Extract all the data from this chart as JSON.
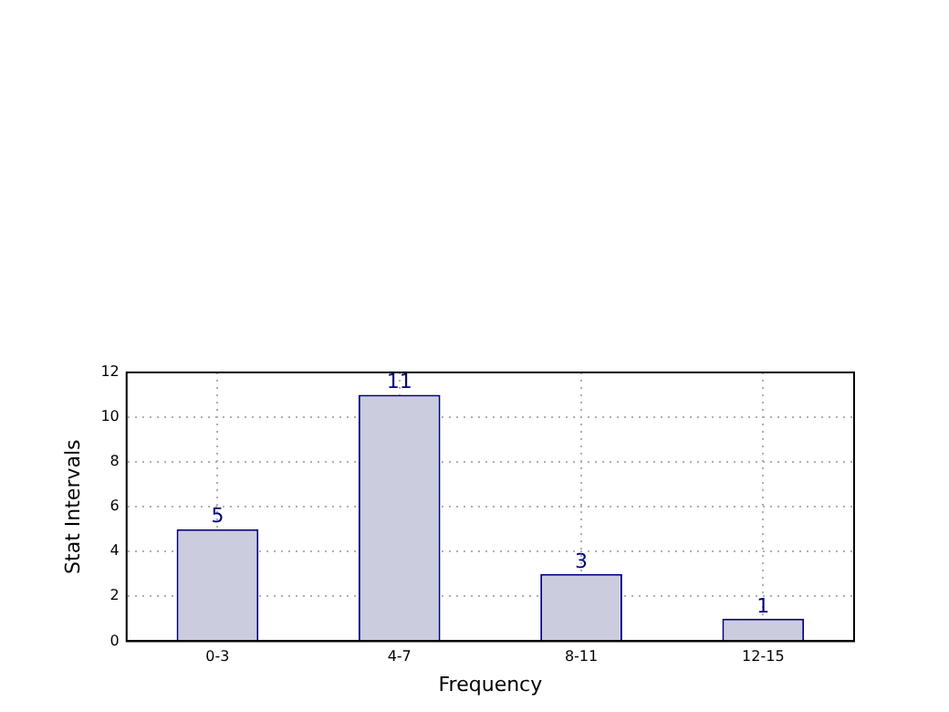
{
  "chart_data": {
    "type": "bar",
    "categories": [
      "0-3",
      "4-7",
      "8-11",
      "12-15"
    ],
    "values": [
      5,
      11,
      3,
      1
    ],
    "color": "#ccccdf",
    "xlabel": "Frequency",
    "ylabel": "Stat Intervals",
    "ylim": [
      0,
      12
    ],
    "yticks": [
      0,
      2,
      4,
      6,
      8,
      10,
      12
    ],
    "grid": true,
    "data_labels": true
  }
}
